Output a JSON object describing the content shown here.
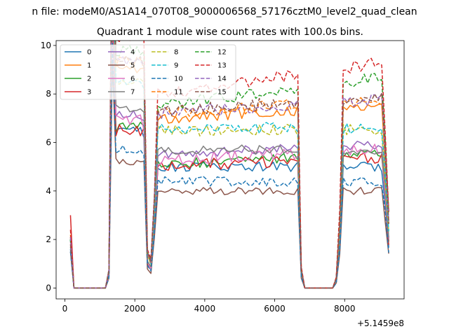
{
  "chart_data": {
    "type": "line",
    "suptitle": "n file: modeM0/AS1A14_070T08_9000006568_57176cztM0_level2_quad_clean",
    "title": "Quadrant 1 module wise count rates with 100.0s bins.",
    "xlabel": "",
    "ylabel": "",
    "x_offset_label": "+5.1459e8",
    "xlim": [
      -250,
      9700
    ],
    "ylim": [
      -0.45,
      10.2
    ],
    "x_ticks": [
      0,
      2000,
      4000,
      6000,
      8000
    ],
    "x_tick_labels": [
      "0",
      "2000",
      "4000",
      "6000",
      "8000"
    ],
    "y_ticks": [
      0,
      2,
      4,
      6,
      8,
      10
    ],
    "y_tick_labels": [
      "0",
      "2",
      "4",
      "6",
      "8",
      "10"
    ],
    "legend_position": "upper-left",
    "bin_width_s": 100,
    "x_start": 160,
    "x_step": 100,
    "profile_segments": [
      {
        "from": 160,
        "value": 2.4
      },
      {
        "from": 260,
        "value": 0
      },
      {
        "from": 1260,
        "value": 0.1
      },
      {
        "from": 1360,
        "value": 2.3
      },
      {
        "from": 1460,
        "value": 1.0
      },
      {
        "from": 2260,
        "value": 0.98
      },
      {
        "from": 2360,
        "value": 0.2
      },
      {
        "from": 2460,
        "value": 0.15
      },
      {
        "from": 2560,
        "value": 0.5
      },
      {
        "from": 2660,
        "value": 1.0
      },
      {
        "from": 6660,
        "value": 1.0
      },
      {
        "from": 6760,
        "value": 0.1
      },
      {
        "from": 6860,
        "value": 0.01
      },
      {
        "from": 7760,
        "value": 0.05
      },
      {
        "from": 7860,
        "value": 0.35
      },
      {
        "from": 7960,
        "value": 1.0
      },
      {
        "from": 9160,
        "value": 0.7
      },
      {
        "from": 9260,
        "value": 0.35
      }
    ],
    "series": [
      {
        "name": "0",
        "color": "#1f77b4",
        "dash": "solid",
        "start": 1.6,
        "level": 5.0,
        "slope": 0.0,
        "noise": 0.2
      },
      {
        "name": "1",
        "color": "#ff7f0e",
        "dash": "solid",
        "start": 2.2,
        "level": 7.0,
        "slope": 0.05,
        "noise": 0.25
      },
      {
        "name": "2",
        "color": "#2ca02c",
        "dash": "solid",
        "start": 2.0,
        "level": 5.1,
        "slope": 0.05,
        "noise": 0.22
      },
      {
        "name": "3",
        "color": "#d62728",
        "dash": "solid",
        "start": 3.0,
        "level": 5.0,
        "slope": 0.05,
        "noise": 0.25
      },
      {
        "name": "4",
        "color": "#9467bd",
        "dash": "solid",
        "start": 2.0,
        "level": 5.5,
        "slope": 0.05,
        "noise": 0.2
      },
      {
        "name": "5",
        "color": "#8c564b",
        "dash": "solid",
        "start": 1.5,
        "level": 4.0,
        "slope": 0.0,
        "noise": 0.15
      },
      {
        "name": "6",
        "color": "#e377c2",
        "dash": "solid",
        "start": 1.9,
        "level": 5.3,
        "slope": 0.05,
        "noise": 0.25
      },
      {
        "name": "7",
        "color": "#7f7f7f",
        "dash": "solid",
        "start": 1.7,
        "level": 5.7,
        "slope": 0.0,
        "noise": 0.2
      },
      {
        "name": "8",
        "color": "#bcbd22",
        "dash": "dashed",
        "start": 2.0,
        "level": 6.5,
        "slope": 0.0,
        "noise": 0.25
      },
      {
        "name": "9",
        "color": "#17becf",
        "dash": "dashed",
        "start": 2.0,
        "level": 6.6,
        "slope": 0.0,
        "noise": 0.25
      },
      {
        "name": "10",
        "color": "#1f77b4",
        "dash": "dashed",
        "start": 1.5,
        "level": 4.4,
        "slope": 0.0,
        "noise": 0.2
      },
      {
        "name": "11",
        "color": "#ff7f0e",
        "dash": "dashed",
        "start": 2.1,
        "level": 7.2,
        "slope": 0.05,
        "noise": 0.25
      },
      {
        "name": "12",
        "color": "#2ca02c",
        "dash": "dashed",
        "start": 2.0,
        "level": 7.5,
        "slope": 0.1,
        "noise": 0.25
      },
      {
        "name": "13",
        "color": "#d62728",
        "dash": "dashed",
        "start": 2.4,
        "level": 8.0,
        "slope": 0.1,
        "noise": 0.25
      },
      {
        "name": "14",
        "color": "#9467bd",
        "dash": "dashed",
        "start": 2.1,
        "level": 7.2,
        "slope": 0.05,
        "noise": 0.25
      },
      {
        "name": "15",
        "color": "#8c564b",
        "dash": "dashed",
        "start": 1.8,
        "level": 7.3,
        "slope": 0.05,
        "noise": 0.25
      }
    ]
  }
}
